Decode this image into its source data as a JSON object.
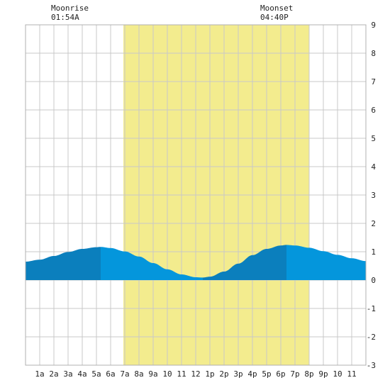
{
  "moon": {
    "moonrise_label": "Moonrise",
    "moonrise_time": "01:54A",
    "moonset_label": "Moonset",
    "moonset_time": "04:40P"
  },
  "colors": {
    "background": "#ffffff",
    "grid": "#c8c8c8",
    "daylight": "#f3ec8e",
    "tide_falling": "#0b7fbd",
    "tide_rising": "#0496dc",
    "text": "#222222"
  },
  "chart_data": {
    "type": "area",
    "title": "",
    "xlabel": "",
    "ylabel": "",
    "x_range_hours": [
      0,
      24
    ],
    "ylim": [
      -3,
      9
    ],
    "y_ticks": [
      9,
      8,
      7,
      6,
      5,
      4,
      3,
      2,
      1,
      0,
      -1,
      -2,
      -3
    ],
    "x_tick_labels": [
      "1a",
      "2a",
      "3a",
      "4a",
      "5a",
      "6a",
      "7a",
      "8a",
      "9a",
      "10",
      "11",
      "12",
      "1p",
      "2p",
      "3p",
      "4p",
      "5p",
      "6p",
      "7p",
      "8p",
      "9p",
      "10",
      "11"
    ],
    "x_grid_every_hours": 1,
    "grid": true,
    "daylight_hours": [
      6.9,
      20.0
    ],
    "moonrise_hour": 1.9,
    "moonset_hour": 16.67,
    "tide_series": [
      {
        "hour": 0,
        "height": 0.65
      },
      {
        "hour": 1,
        "height": 0.72
      },
      {
        "hour": 2,
        "height": 0.85
      },
      {
        "hour": 3,
        "height": 0.99
      },
      {
        "hour": 4,
        "height": 1.1
      },
      {
        "hour": 5,
        "height": 1.16
      },
      {
        "hour": 5.3,
        "height": 1.17
      },
      {
        "hour": 6,
        "height": 1.13
      },
      {
        "hour": 7,
        "height": 1.01
      },
      {
        "hour": 8,
        "height": 0.83
      },
      {
        "hour": 9,
        "height": 0.6
      },
      {
        "hour": 10,
        "height": 0.38
      },
      {
        "hour": 11,
        "height": 0.2
      },
      {
        "hour": 12,
        "height": 0.1
      },
      {
        "hour": 12.5,
        "height": 0.09
      },
      {
        "hour": 13,
        "height": 0.12
      },
      {
        "hour": 14,
        "height": 0.3
      },
      {
        "hour": 15,
        "height": 0.58
      },
      {
        "hour": 16,
        "height": 0.88
      },
      {
        "hour": 17,
        "height": 1.1
      },
      {
        "hour": 18,
        "height": 1.22
      },
      {
        "hour": 18.4,
        "height": 1.24
      },
      {
        "hour": 19,
        "height": 1.22
      },
      {
        "hour": 20,
        "height": 1.14
      },
      {
        "hour": 21,
        "height": 1.02
      },
      {
        "hour": 22,
        "height": 0.89
      },
      {
        "hour": 23,
        "height": 0.77
      },
      {
        "hour": 24,
        "height": 0.67
      }
    ],
    "tide_bands": [
      {
        "start_hour": 0,
        "end_hour": 5.3,
        "trend": "rising"
      },
      {
        "start_hour": 5.3,
        "end_hour": 12.5,
        "trend": "falling"
      },
      {
        "start_hour": 12.5,
        "end_hour": 18.4,
        "trend": "rising"
      },
      {
        "start_hour": 18.4,
        "end_hour": 24,
        "trend": "falling"
      }
    ]
  }
}
